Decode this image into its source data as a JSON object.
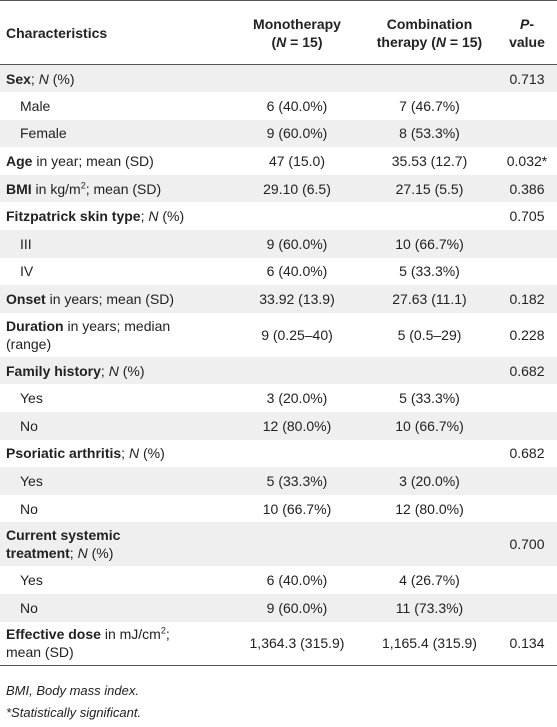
{
  "table": {
    "header": [
      [
        [
          [
            "b",
            "Characteristics"
          ]
        ]
      ],
      [
        [
          [
            "b",
            "Monotherapy"
          ]
        ],
        [
          [
            "b",
            "("
          ],
          [
            "bi",
            "N"
          ],
          [
            "b",
            " = 15)"
          ]
        ]
      ],
      [
        [
          [
            "b",
            "Combination"
          ]
        ],
        [
          [
            "b",
            "therapy ("
          ],
          [
            "bi",
            "N"
          ],
          [
            "b",
            " = 15)"
          ]
        ]
      ],
      [
        [
          [
            "bi",
            "P"
          ],
          [
            "b",
            "-value"
          ]
        ]
      ]
    ],
    "rows": [
      {
        "label": [
          [
            [
              "b",
              "Sex"
            ],
            [
              "r",
              "; "
            ],
            [
              "i",
              "N"
            ],
            [
              "r",
              " (%)"
            ]
          ]
        ],
        "p": "0.713"
      },
      {
        "label": [
          [
            [
              "r",
              "Male"
            ]
          ]
        ],
        "sub": true,
        "mono": "6 (40.0%)",
        "combo": "7 (46.7%)"
      },
      {
        "label": [
          [
            [
              "r",
              "Female"
            ]
          ]
        ],
        "sub": true,
        "mono": "9 (60.0%)",
        "combo": "8 (53.3%)"
      },
      {
        "label": [
          [
            [
              "b",
              "Age"
            ],
            [
              "r",
              " in year; mean (SD)"
            ]
          ]
        ],
        "mono": "47 (15.0)",
        "combo": "35.53 (12.7)",
        "p": "0.032*"
      },
      {
        "label": [
          [
            [
              "b",
              "BMI"
            ],
            [
              "r",
              " in kg/m"
            ],
            [
              "sup",
              "2"
            ],
            [
              "r",
              "; mean (SD)"
            ]
          ]
        ],
        "mono": "29.10 (6.5)",
        "combo": "27.15 (5.5)",
        "p": "0.386"
      },
      {
        "label": [
          [
            [
              "b",
              "Fitzpatrick skin type"
            ],
            [
              "r",
              "; "
            ],
            [
              "i",
              "N"
            ],
            [
              "r",
              " (%)"
            ]
          ]
        ],
        "p": "0.705"
      },
      {
        "label": [
          [
            [
              "r",
              "III"
            ]
          ]
        ],
        "sub": true,
        "mono": "9 (60.0%)",
        "combo": "10 (66.7%)"
      },
      {
        "label": [
          [
            [
              "r",
              "IV"
            ]
          ]
        ],
        "sub": true,
        "mono": "6 (40.0%)",
        "combo": "5 (33.3%)"
      },
      {
        "label": [
          [
            [
              "b",
              "Onset"
            ],
            [
              "r",
              " in years; mean (SD)"
            ]
          ]
        ],
        "mono": "33.92 (13.9)",
        "combo": "27.63 (11.1)",
        "p": "0.182"
      },
      {
        "label": [
          [
            [
              "b",
              "Duration"
            ],
            [
              "r",
              " in years; median"
            ]
          ],
          [
            [
              "r",
              "(range)"
            ]
          ]
        ],
        "mono": "9 (0.25–40)",
        "combo": "5 (0.5–29)",
        "p": "0.228"
      },
      {
        "label": [
          [
            [
              "b",
              "Family history"
            ],
            [
              "r",
              "; "
            ],
            [
              "i",
              "N"
            ],
            [
              "r",
              " (%)"
            ]
          ]
        ],
        "p": "0.682"
      },
      {
        "label": [
          [
            [
              "r",
              "Yes"
            ]
          ]
        ],
        "sub": true,
        "mono": "3 (20.0%)",
        "combo": "5 (33.3%)"
      },
      {
        "label": [
          [
            [
              "r",
              "No"
            ]
          ]
        ],
        "sub": true,
        "mono": "12 (80.0%)",
        "combo": "10 (66.7%)"
      },
      {
        "label": [
          [
            [
              "b",
              "Psoriatic arthritis"
            ],
            [
              "r",
              "; "
            ],
            [
              "i",
              "N"
            ],
            [
              "r",
              " (%)"
            ]
          ]
        ],
        "p": "0.682"
      },
      {
        "label": [
          [
            [
              "r",
              "Yes"
            ]
          ]
        ],
        "sub": true,
        "mono": "5 (33.3%)",
        "combo": "3 (20.0%)"
      },
      {
        "label": [
          [
            [
              "r",
              "No"
            ]
          ]
        ],
        "sub": true,
        "mono": "10 (66.7%)",
        "combo": "12 (80.0%)"
      },
      {
        "label": [
          [
            [
              "b",
              "Current systemic"
            ]
          ],
          [
            [
              "b",
              "treatment"
            ],
            [
              "r",
              "; "
            ],
            [
              "i",
              "N"
            ],
            [
              "r",
              " (%)"
            ]
          ]
        ],
        "p": "0.700"
      },
      {
        "label": [
          [
            [
              "r",
              "Yes"
            ]
          ]
        ],
        "sub": true,
        "mono": "6 (40.0%)",
        "combo": "4 (26.7%)"
      },
      {
        "label": [
          [
            [
              "r",
              "No"
            ]
          ]
        ],
        "sub": true,
        "mono": "9 (60.0%)",
        "combo": "11 (73.3%)"
      },
      {
        "label": [
          [
            [
              "b",
              "Effective dose"
            ],
            [
              "r",
              " in mJ/cm"
            ],
            [
              "sup",
              "2"
            ],
            [
              "r",
              ";"
            ]
          ],
          [
            [
              "r",
              "mean (SD)"
            ]
          ]
        ],
        "mono": "1,364.3 (315.9)",
        "combo": "1,165.4 (315.9)",
        "p": "0.134"
      }
    ],
    "footnotes": [
      "BMI, Body mass index.",
      "*Statistically significant."
    ]
  }
}
